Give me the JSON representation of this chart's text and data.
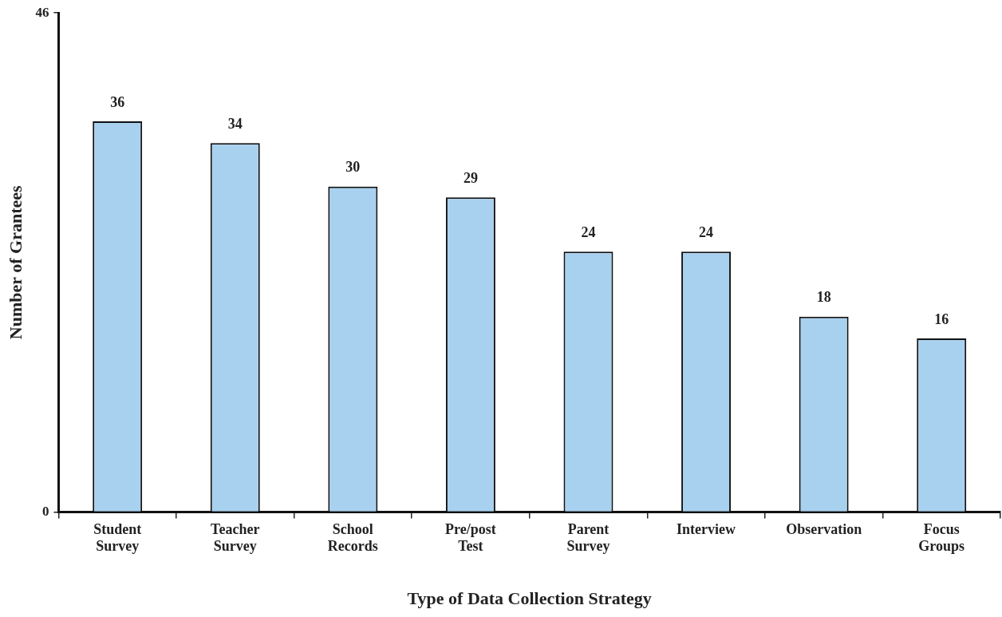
{
  "chart_data": {
    "type": "bar",
    "xlabel": "Type of Data Collection Strategy",
    "ylabel": "Number of Grantees",
    "categories": [
      "Student Survey",
      "Teacher Survey",
      "School Records",
      "Pre/post Test",
      "Parent Survey",
      "Interview",
      "Observation",
      "Focus Groups"
    ],
    "values": [
      36,
      34,
      30,
      29,
      24,
      24,
      18,
      16
    ],
    "color": "#a8d1ef",
    "ylim": [
      0,
      46
    ],
    "yticks": [
      0,
      46
    ],
    "grid": false,
    "legend": false,
    "data_labels": true
  }
}
